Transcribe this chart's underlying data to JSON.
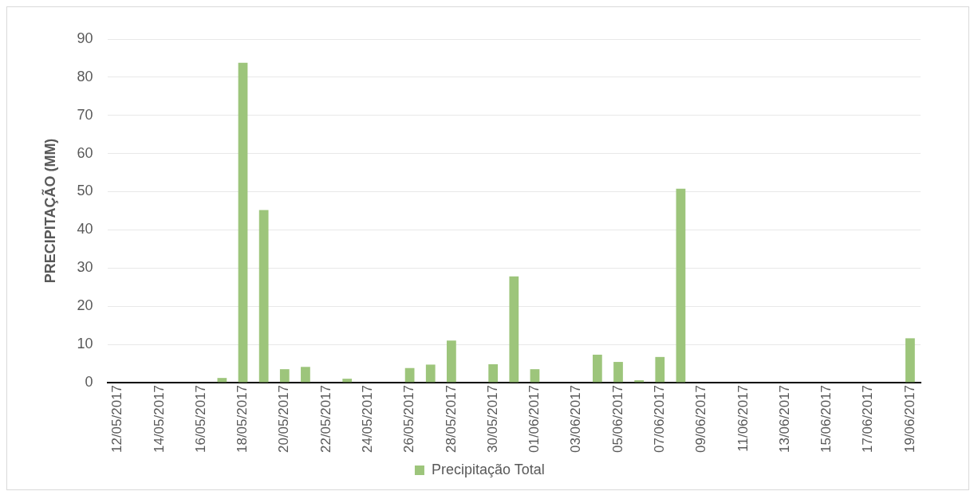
{
  "chart_data": {
    "type": "bar",
    "ylabel": "PRECIPITAÇÃO (MM)",
    "categories": [
      "12/05/2017",
      null,
      "14/05/2017",
      null,
      "16/05/2017",
      null,
      "18/05/2017",
      null,
      "20/05/2017",
      null,
      "22/05/2017",
      null,
      "24/05/2017",
      null,
      "26/05/2017",
      null,
      "28/05/2017",
      null,
      "30/05/2017",
      null,
      "01/06/2017",
      null,
      "03/06/2017",
      null,
      "05/06/2017",
      null,
      "07/06/2017",
      null,
      "09/06/2017",
      null,
      "11/06/2017",
      null,
      "13/06/2017",
      null,
      "15/06/2017",
      null,
      "17/06/2017",
      null,
      "19/06/2017"
    ],
    "series": [
      {
        "name": "Precipitação Total",
        "color": "#9dc57b",
        "values": [
          0,
          0,
          0,
          0,
          0,
          1.2,
          83.8,
          45.2,
          3.5,
          4.1,
          0,
          1,
          0,
          0,
          3.8,
          4.7,
          11,
          0,
          4.8,
          27.8,
          3.5,
          0,
          0,
          7.3,
          5.4,
          0.6,
          6.7,
          50.8,
          0,
          0,
          0,
          0,
          0,
          0,
          0,
          0,
          0,
          0,
          11.6
        ]
      }
    ],
    "ylim": [
      0,
      90
    ],
    "yticks": [
      0,
      10,
      20,
      30,
      40,
      50,
      60,
      70,
      80,
      90
    ],
    "grid": "y",
    "legend": "bottom"
  }
}
